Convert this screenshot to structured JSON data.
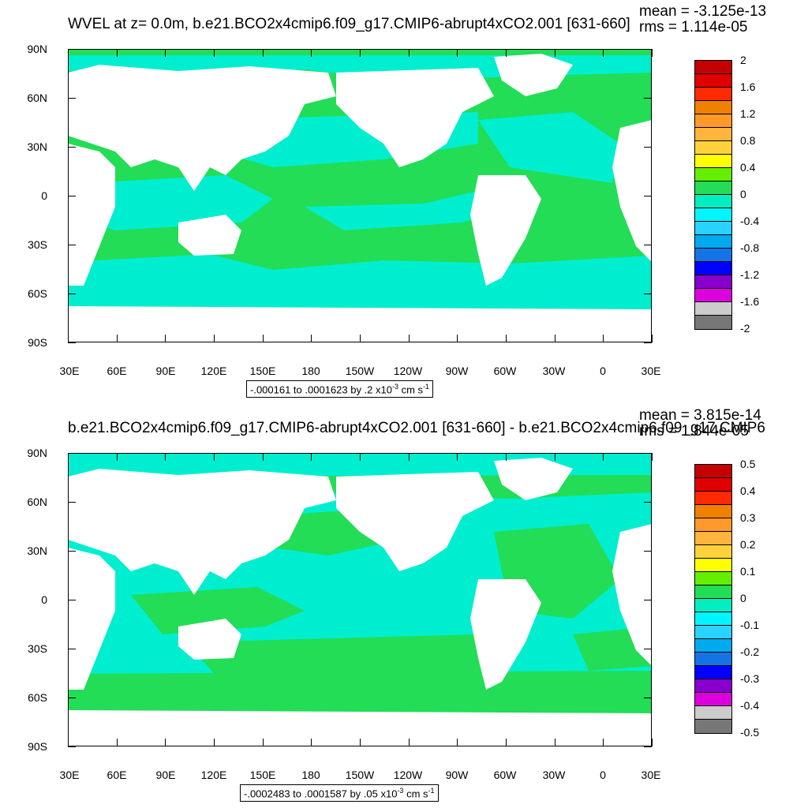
{
  "panels": [
    {
      "title": "WVEL at z=   0.0m, b.e21.BCO2x4cmip6.f09_g17.CMIP6-abrupt4xCO2.001 [631-660]",
      "mean": "mean = -3.125e-13",
      "rms": "rms = 1.114e-05",
      "range_text": "-.000161 to .0001623 by .2 x10",
      "range_exp": "-3",
      "range_unit": " cm s",
      "range_unit_exp": "-1",
      "colorbar_labels": [
        "2",
        "1.6",
        "1.2",
        "0.8",
        "0.4",
        "0",
        "-0.4",
        "-0.8",
        "-1.2",
        "-1.6",
        "-2"
      ],
      "colorbar_colors": [
        "#c40000",
        "#e10000",
        "#ff2a00",
        "#f08000",
        "#ff9a2a",
        "#ffb43c",
        "#ffd23c",
        "#ffff00",
        "#66ee00",
        "#22dd55",
        "#00eec0",
        "#00f6ff",
        "#2ad2ff",
        "#00aaee",
        "#1474e6",
        "#0000ff",
        "#8800cc",
        "#dd00dd",
        "#cccccc",
        "#777777"
      ],
      "ocean_color": "#22dd55",
      "secondary_color": "#00eed0"
    },
    {
      "title": "b.e21.BCO2x4cmip6.f09_g17.CMIP6-abrupt4xCO2.001 [631-660] - b.e21.BCO2x4cmip6.f09_g17.CMIP6",
      "mean": "mean = 3.815e-14",
      "rms": "rms = 1.844e-05",
      "range_text": "-.0002483 to .0001587 by .05 x10",
      "range_exp": "-3",
      "range_unit": " cm s",
      "range_unit_exp": "-1",
      "colorbar_labels": [
        "0.5",
        "0.4",
        "0.3",
        "0.2",
        "0.1",
        "0",
        "-0.1",
        "-0.2",
        "-0.3",
        "-0.4",
        "-0.5"
      ],
      "colorbar_colors": [
        "#c40000",
        "#e10000",
        "#ff2a00",
        "#f08000",
        "#ff9a2a",
        "#ffb43c",
        "#ffd23c",
        "#ffff00",
        "#66ee00",
        "#22dd55",
        "#00eec0",
        "#00f6ff",
        "#2ad2ff",
        "#00aaee",
        "#1474e6",
        "#0000ff",
        "#8800cc",
        "#dd00dd",
        "#cccccc",
        "#777777"
      ],
      "ocean_color": "#00eed0",
      "secondary_color": "#22dd55"
    }
  ],
  "axes": {
    "y_labels": [
      "90N",
      "60N",
      "30N",
      "0",
      "30S",
      "60S",
      "90S"
    ],
    "x_labels": [
      "30E",
      "60E",
      "90E",
      "120E",
      "150E",
      "180",
      "150W",
      "120W",
      "90W",
      "60W",
      "30W",
      "0",
      "30E"
    ]
  }
}
